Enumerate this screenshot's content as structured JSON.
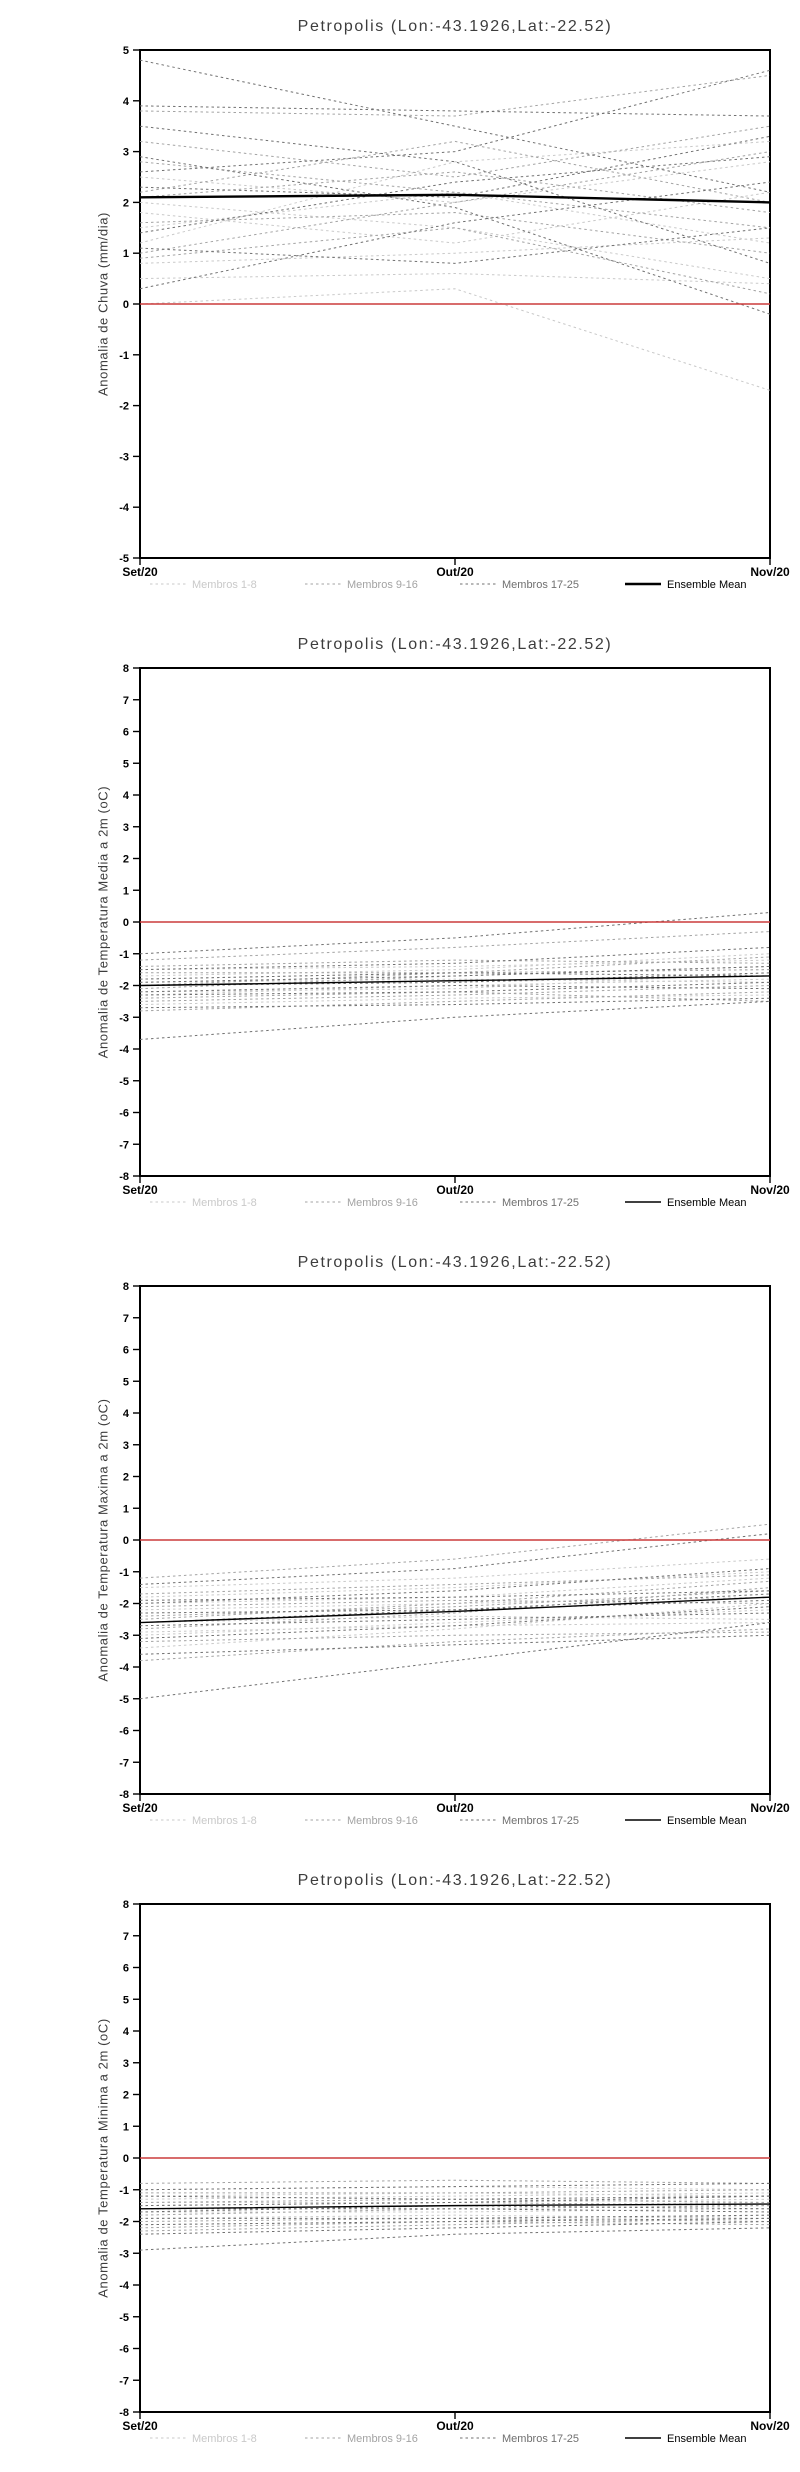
{
  "page": {
    "background": "#ffffff"
  },
  "colors": {
    "member_group1": "#c9c9c9",
    "member_group2": "#a3a3a3",
    "member_group3": "#707070",
    "ensemble_mean": "#000000",
    "zero_line": "#cc3b3b",
    "frame": "#000000",
    "title_text": "#3d3d3d",
    "tick_text": "#000000"
  },
  "legend": {
    "position": "bottom",
    "items": [
      {
        "label": "Membros 1-8",
        "color_key": "member_group1",
        "style": "dashed"
      },
      {
        "label": "Membros 9-16",
        "color_key": "member_group2",
        "style": "dashed"
      },
      {
        "label": "Membros 17-25",
        "color_key": "member_group3",
        "style": "dashed"
      },
      {
        "label": "Ensemble Mean",
        "color_key": "ensemble_mean",
        "style": "solid"
      }
    ]
  },
  "chart_data": [
    {
      "type": "line",
      "title": "Petropolis (Lon:-43.1926,Lat:-22.52)",
      "ylabel": "Anomalia de Chuva (mm/dia)",
      "x_labels": [
        "Set/20",
        "Out/20",
        "Nov/20"
      ],
      "ylim": [
        -5,
        5
      ],
      "ytick_step": 1,
      "grid": false,
      "zero_line": 0,
      "mean_width": 2.4,
      "series_groups": [
        {
          "name": "Membros 1-8",
          "color_key": "member_group1",
          "members": [
            [
              0.8,
              1.0,
              1.3
            ],
            [
              1.5,
              2.2,
              1.2
            ],
            [
              2.0,
              1.5,
              0.5
            ],
            [
              0.0,
              0.3,
              -1.7
            ],
            [
              1.2,
              2.8,
              3.2
            ],
            [
              2.5,
              2.0,
              2.8
            ],
            [
              0.5,
              0.6,
              0.4
            ],
            [
              1.8,
              1.2,
              2.2
            ]
          ]
        },
        {
          "name": "Membros 9-16",
          "color_key": "member_group2",
          "members": [
            [
              3.8,
              3.7,
              4.5
            ],
            [
              2.2,
              3.2,
              2.0
            ],
            [
              1.0,
              2.0,
              3.0
            ],
            [
              2.8,
              2.2,
              1.5
            ],
            [
              1.6,
              1.8,
              1.0
            ],
            [
              3.2,
              2.5,
              3.5
            ],
            [
              0.9,
              1.5,
              0.2
            ],
            [
              2.1,
              2.6,
              1.8
            ]
          ]
        },
        {
          "name": "Membros 17-25",
          "color_key": "member_group3",
          "members": [
            [
              4.8,
              3.5,
              2.2
            ],
            [
              3.9,
              3.8,
              3.7
            ],
            [
              2.3,
              2.1,
              3.3
            ],
            [
              1.4,
              2.4,
              2.9
            ],
            [
              3.5,
              2.8,
              0.8
            ],
            [
              2.6,
              3.0,
              4.6
            ],
            [
              1.1,
              0.8,
              1.5
            ],
            [
              2.9,
              1.9,
              -0.2
            ],
            [
              0.3,
              1.6,
              2.4
            ]
          ]
        }
      ],
      "ensemble_mean": [
        2.1,
        2.15,
        2.0
      ]
    },
    {
      "type": "line",
      "title": "Petropolis (Lon:-43.1926,Lat:-22.52)",
      "ylabel": "Anomalia de Temperatura Media a 2m (oC)",
      "x_labels": [
        "Set/20",
        "Out/20",
        "Nov/20"
      ],
      "ylim": [
        -8,
        8
      ],
      "ytick_step": 1,
      "grid": false,
      "zero_line": 0,
      "mean_width": 1.4,
      "series_groups": [
        {
          "name": "Membros 1-8",
          "color_key": "member_group1",
          "members": [
            [
              -1.8,
              -1.6,
              -1.5
            ],
            [
              -2.0,
              -1.9,
              -1.7
            ],
            [
              -2.3,
              -2.0,
              -1.8
            ],
            [
              -1.5,
              -1.4,
              -1.2
            ],
            [
              -2.6,
              -2.4,
              -2.3
            ],
            [
              -1.9,
              -1.8,
              -1.9
            ],
            [
              -2.2,
              -2.1,
              -1.6
            ],
            [
              -1.7,
              -1.5,
              -1.0
            ]
          ]
        },
        {
          "name": "Membros 9-16",
          "color_key": "member_group2",
          "members": [
            [
              -1.2,
              -0.8,
              -0.3
            ],
            [
              -2.1,
              -1.7,
              -1.4
            ],
            [
              -2.4,
              -2.2,
              -2.5
            ],
            [
              -1.6,
              -1.6,
              -1.5
            ],
            [
              -2.8,
              -2.5,
              -2.2
            ],
            [
              -2.0,
              -1.6,
              -1.1
            ],
            [
              -1.4,
              -1.2,
              -1.3
            ],
            [
              -2.5,
              -2.3,
              -2.0
            ]
          ]
        },
        {
          "name": "Membros 17-25",
          "color_key": "member_group3",
          "members": [
            [
              -1.0,
              -0.5,
              0.3
            ],
            [
              -3.7,
              -3.0,
              -2.5
            ],
            [
              -2.2,
              -2.0,
              -2.1
            ],
            [
              -1.9,
              -1.7,
              -1.4
            ],
            [
              -2.7,
              -2.6,
              -2.4
            ],
            [
              -1.5,
              -1.3,
              -0.8
            ],
            [
              -2.3,
              -2.2,
              -1.9
            ],
            [
              -2.0,
              -1.9,
              -1.6
            ],
            [
              -1.8,
              -1.6,
              -1.7
            ]
          ]
        }
      ],
      "ensemble_mean": [
        -2.0,
        -1.85,
        -1.7
      ]
    },
    {
      "type": "line",
      "title": "Petropolis (Lon:-43.1926,Lat:-22.52)",
      "ylabel": "Anomalia de Temperatura Maxima a 2m (oC)",
      "x_labels": [
        "Set/20",
        "Out/20",
        "Nov/20"
      ],
      "ylim": [
        -8,
        8
      ],
      "ytick_step": 1,
      "grid": false,
      "zero_line": 0,
      "mean_width": 1.4,
      "series_groups": [
        {
          "name": "Membros 1-8",
          "color_key": "member_group1",
          "members": [
            [
              -2.2,
              -2.0,
              -1.8
            ],
            [
              -3.0,
              -2.6,
              -2.2
            ],
            [
              -1.8,
              -1.5,
              -1.0
            ],
            [
              -2.6,
              -2.4,
              -2.5
            ],
            [
              -3.4,
              -2.8,
              -2.0
            ],
            [
              -2.0,
              -1.8,
              -1.2
            ],
            [
              -2.9,
              -2.7,
              -2.6
            ],
            [
              -1.5,
              -1.2,
              -0.6
            ]
          ]
        },
        {
          "name": "Membros 9-16",
          "color_key": "member_group2",
          "members": [
            [
              -1.2,
              -0.6,
              0.5
            ],
            [
              -2.4,
              -2.1,
              -1.6
            ],
            [
              -3.8,
              -3.2,
              -2.8
            ],
            [
              -2.1,
              -1.9,
              -2.0
            ],
            [
              -2.8,
              -2.3,
              -1.5
            ],
            [
              -1.7,
              -1.4,
              -1.1
            ],
            [
              -3.2,
              -3.0,
              -2.9
            ],
            [
              -2.5,
              -2.0,
              -1.3
            ]
          ]
        },
        {
          "name": "Membros 17-25",
          "color_key": "member_group3",
          "members": [
            [
              -5.0,
              -3.8,
              -2.6
            ],
            [
              -1.4,
              -0.9,
              0.2
            ],
            [
              -2.3,
              -2.2,
              -1.9
            ],
            [
              -3.6,
              -3.3,
              -3.0
            ],
            [
              -2.0,
              -1.6,
              -0.9
            ],
            [
              -2.7,
              -2.5,
              -2.3
            ],
            [
              -3.1,
              -2.7,
              -2.1
            ],
            [
              -1.9,
              -1.8,
              -1.6
            ],
            [
              -2.6,
              -2.2,
              -1.7
            ]
          ]
        }
      ],
      "ensemble_mean": [
        -2.6,
        -2.25,
        -1.8
      ]
    },
    {
      "type": "line",
      "title": "Petropolis (Lon:-43.1926,Lat:-22.52)",
      "ylabel": "Anomalia de Temperatura Minima a 2m (oC)",
      "x_labels": [
        "Set/20",
        "Out/20",
        "Nov/20"
      ],
      "ylim": [
        -8,
        8
      ],
      "ytick_step": 1,
      "grid": false,
      "zero_line": 0,
      "mean_width": 1.4,
      "series_groups": [
        {
          "name": "Membros 1-8",
          "color_key": "member_group1",
          "members": [
            [
              -1.2,
              -1.1,
              -1.2
            ],
            [
              -1.6,
              -1.5,
              -1.4
            ],
            [
              -1.9,
              -1.8,
              -1.9
            ],
            [
              -1.0,
              -0.9,
              -1.0
            ],
            [
              -2.1,
              -2.0,
              -1.8
            ],
            [
              -1.4,
              -1.4,
              -1.3
            ],
            [
              -1.7,
              -1.7,
              -1.6
            ],
            [
              -1.3,
              -1.2,
              -1.1
            ]
          ]
        },
        {
          "name": "Membros 9-16",
          "color_key": "member_group2",
          "members": [
            [
              -0.8,
              -0.7,
              -0.8
            ],
            [
              -1.5,
              -1.4,
              -1.5
            ],
            [
              -2.0,
              -1.9,
              -2.0
            ],
            [
              -1.1,
              -1.1,
              -1.0
            ],
            [
              -2.3,
              -2.1,
              -1.9
            ],
            [
              -1.8,
              -1.6,
              -1.5
            ],
            [
              -1.4,
              -1.3,
              -1.4
            ],
            [
              -2.2,
              -2.0,
              -2.1
            ]
          ]
        },
        {
          "name": "Membros 17-25",
          "color_key": "member_group3",
          "members": [
            [
              -2.9,
              -2.4,
              -2.2
            ],
            [
              -1.0,
              -0.9,
              -0.8
            ],
            [
              -1.6,
              -1.6,
              -1.7
            ],
            [
              -2.4,
              -2.2,
              -2.0
            ],
            [
              -1.2,
              -1.3,
              -1.2
            ],
            [
              -1.9,
              -1.9,
              -1.8
            ],
            [
              -1.5,
              -1.4,
              -1.2
            ],
            [
              -2.1,
              -2.0,
              -1.9
            ],
            [
              -1.7,
              -1.5,
              -1.6
            ]
          ]
        }
      ],
      "ensemble_mean": [
        -1.6,
        -1.5,
        -1.45
      ]
    }
  ]
}
